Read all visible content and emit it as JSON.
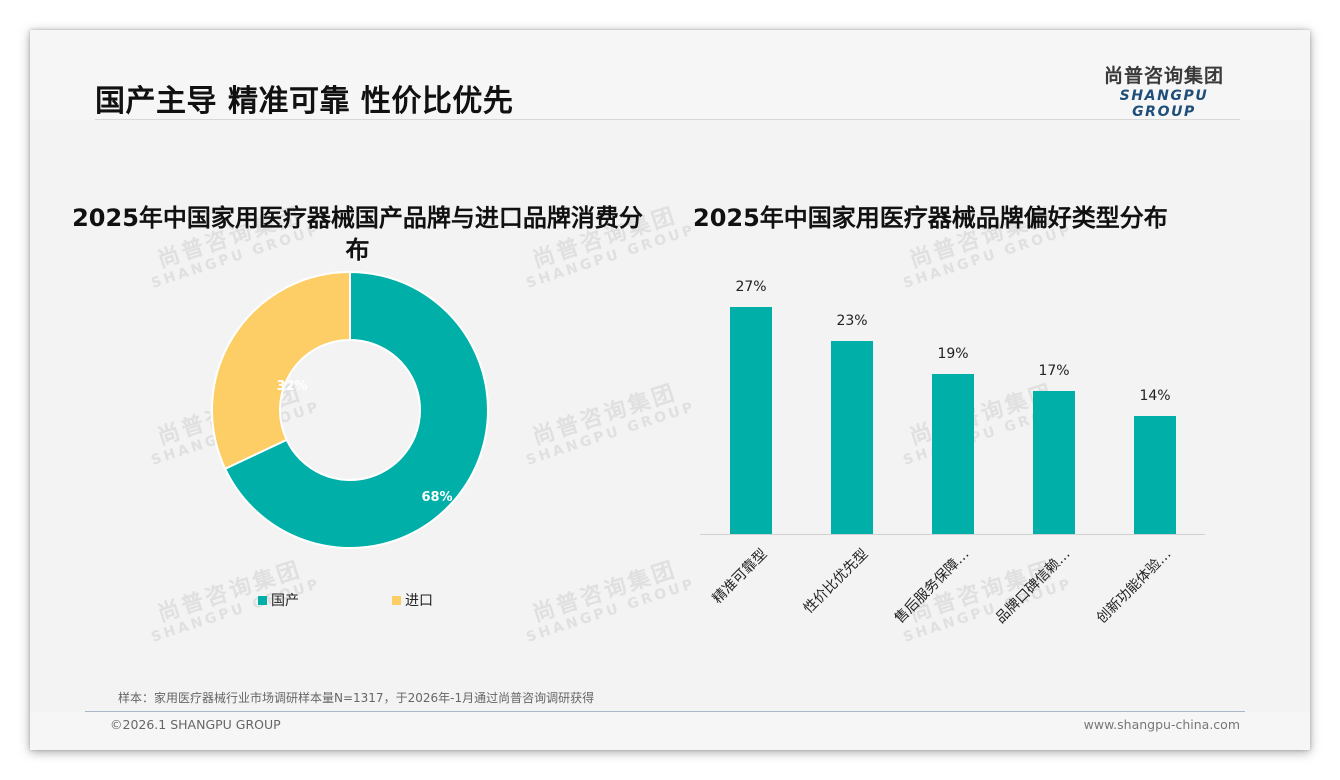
{
  "header": {
    "title": "国产主导 精准可靠 性价比优先",
    "logo_cn": "尚普咨询集团",
    "logo_en": "SHANGPU GROUP"
  },
  "watermark": {
    "cn": "尚普咨询集团",
    "en": "SHANGPU GROUP"
  },
  "colors": {
    "teal": "#00b0a8",
    "yellow": "#fdcd66",
    "background": "#f3f3f3",
    "logo_blue": "#1f4e79"
  },
  "left_chart": {
    "title": "2025年中国家用医疗器械国产品牌与进口品牌消费分布",
    "title_line1": "2025年中国家用医疗器械国产品牌与进口品牌消费分",
    "title_line2": "布",
    "legend": [
      {
        "label": "国产",
        "color": "#00b0a8"
      },
      {
        "label": "进口",
        "color": "#fdcd66"
      }
    ],
    "labels": {
      "domestic": "68%",
      "imported": "32%"
    }
  },
  "right_chart": {
    "title": "2025年中国家用医疗器械品牌偏好类型分布",
    "bars": [
      {
        "label": "精准可靠型",
        "value": 27,
        "value_label": "27%"
      },
      {
        "label": "性价比优先型",
        "value": 23,
        "value_label": "23%"
      },
      {
        "label": "售后服务保障…",
        "value": 19,
        "value_label": "19%"
      },
      {
        "label": "品牌口碑信赖…",
        "value": 17,
        "value_label": "17%"
      },
      {
        "label": "创新功能体验…",
        "value": 14,
        "value_label": "14%"
      }
    ]
  },
  "footer": {
    "note": "样本：家用医疗器械行业市场调研样本量N=1317，于2026年-1月通过尚普咨询调研获得",
    "copyright": "©2026.1 SHANGPU GROUP",
    "url": "www.shangpu-china.com"
  },
  "chart_data": [
    {
      "type": "pie",
      "subtype": "donut",
      "title": "2025年中国家用医疗器械国产品牌与进口品牌消费分布",
      "categories": [
        "国产",
        "进口"
      ],
      "values": [
        68,
        32
      ],
      "unit": "%",
      "colors": [
        "#00b0a8",
        "#fdcd66"
      ],
      "legend_position": "bottom"
    },
    {
      "type": "bar",
      "title": "2025年中国家用医疗器械品牌偏好类型分布",
      "categories": [
        "精准可靠型",
        "性价比优先型",
        "售后服务保障…",
        "品牌口碑信赖…",
        "创新功能体验…"
      ],
      "values": [
        27,
        23,
        19,
        17,
        14
      ],
      "unit": "%",
      "xlabel": "",
      "ylabel": "",
      "ylim": [
        0,
        30
      ],
      "grid": false,
      "color": "#00b0a8",
      "data_labels": true
    }
  ]
}
